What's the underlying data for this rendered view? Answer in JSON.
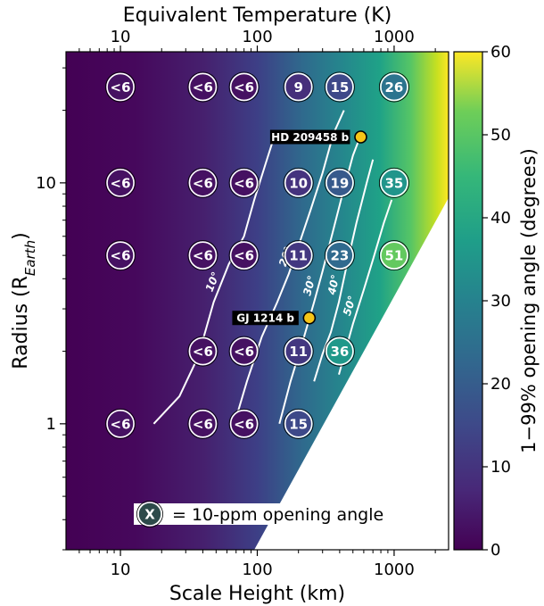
{
  "colors": {
    "background_high": "#fde725",
    "background_low": "#440154",
    "circle_text": "#ffffff",
    "planet_marker": "#f5c518",
    "contour": "#ffffff"
  },
  "chart_data": {
    "type": "heatmap",
    "title": "",
    "xlabel": "Scale Height (km)",
    "ylabel_main": "Radius (R",
    "ylabel_sub": "Earth",
    "ylabel_close": ")",
    "top_xlabel": "Equivalent Temperature (K)",
    "x_scale": "log",
    "y_scale": "log",
    "xlim": [
      4,
      2500
    ],
    "ylim": [
      0.3,
      35
    ],
    "x_ticks": [
      {
        "value": 10,
        "label": "10"
      },
      {
        "value": 100,
        "label": "100"
      },
      {
        "value": 1000,
        "label": "1000"
      }
    ],
    "y_ticks": [
      {
        "value": 1,
        "label": "1"
      },
      {
        "value": 10,
        "label": "10"
      }
    ],
    "top_ticks": [
      {
        "value": 10,
        "label": "10"
      },
      {
        "value": 100,
        "label": "100"
      },
      {
        "value": 1000,
        "label": "1000"
      }
    ],
    "colorbar": {
      "label": "1−99% opening angle (degrees)",
      "range": [
        0,
        60
      ],
      "ticks": [
        {
          "value": 0,
          "label": "0"
        },
        {
          "value": 10,
          "label": "10"
        },
        {
          "value": 20,
          "label": "20"
        },
        {
          "value": 30,
          "label": "30"
        },
        {
          "value": 40,
          "label": "40"
        },
        {
          "value": 50,
          "label": "50"
        },
        {
          "value": 60,
          "label": "60"
        }
      ]
    },
    "grid_circles": [
      {
        "x": 10,
        "y": 25,
        "label": "<6",
        "value": 3
      },
      {
        "x": 40,
        "y": 25,
        "label": "<6",
        "value": 3
      },
      {
        "x": 80,
        "y": 25,
        "label": "<6",
        "value": 3
      },
      {
        "x": 200,
        "y": 25,
        "label": "9",
        "value": 9
      },
      {
        "x": 400,
        "y": 25,
        "label": "15",
        "value": 15
      },
      {
        "x": 1000,
        "y": 25,
        "label": "26",
        "value": 26
      },
      {
        "x": 10,
        "y": 10,
        "label": "<6",
        "value": 3
      },
      {
        "x": 40,
        "y": 10,
        "label": "<6",
        "value": 3
      },
      {
        "x": 80,
        "y": 10,
        "label": "<6",
        "value": 3
      },
      {
        "x": 200,
        "y": 10,
        "label": "10",
        "value": 10
      },
      {
        "x": 400,
        "y": 10,
        "label": "19",
        "value": 19
      },
      {
        "x": 1000,
        "y": 10,
        "label": "35",
        "value": 35
      },
      {
        "x": 10,
        "y": 5,
        "label": "<6",
        "value": 3
      },
      {
        "x": 40,
        "y": 5,
        "label": "<6",
        "value": 3
      },
      {
        "x": 80,
        "y": 5,
        "label": "<6",
        "value": 3
      },
      {
        "x": 200,
        "y": 5,
        "label": "11",
        "value": 11
      },
      {
        "x": 400,
        "y": 5,
        "label": "23",
        "value": 23
      },
      {
        "x": 1000,
        "y": 5,
        "label": "51",
        "value": 51
      },
      {
        "x": 40,
        "y": 2,
        "label": "<6",
        "value": 3
      },
      {
        "x": 80,
        "y": 2,
        "label": "<6",
        "value": 3
      },
      {
        "x": 200,
        "y": 2,
        "label": "11",
        "value": 11
      },
      {
        "x": 400,
        "y": 2,
        "label": "36",
        "value": 36
      },
      {
        "x": 10,
        "y": 1,
        "label": "<6",
        "value": 3
      },
      {
        "x": 40,
        "y": 1,
        "label": "<6",
        "value": 3
      },
      {
        "x": 80,
        "y": 1,
        "label": "<6",
        "value": 3
      },
      {
        "x": 200,
        "y": 1,
        "label": "15",
        "value": 15
      }
    ],
    "contours": [
      {
        "label": "10°",
        "points": [
          [
            17.5,
            1.0
          ],
          [
            27,
            1.3
          ],
          [
            37,
            1.9
          ],
          [
            48,
            3.2
          ],
          [
            62,
            4.6
          ],
          [
            80,
            6.0
          ],
          [
            95,
            8.5
          ],
          [
            115,
            12
          ],
          [
            135,
            16
          ]
        ]
      },
      {
        "label": "20°",
        "points": [
          [
            68,
            1.0
          ],
          [
            84,
            1.5
          ],
          [
            108,
            2.3
          ],
          [
            140,
            3.2
          ],
          [
            170,
            4.2
          ],
          [
            205,
            5.7
          ],
          [
            245,
            7.7
          ],
          [
            300,
            11
          ],
          [
            360,
            16
          ],
          [
            430,
            20
          ]
        ]
      },
      {
        "label": "30°",
        "points": [
          [
            145,
            1.0
          ],
          [
            175,
            1.5
          ],
          [
            215,
            2.2
          ],
          [
            260,
            3.2
          ],
          [
            300,
            4.3
          ],
          [
            355,
            6.2
          ],
          [
            420,
            9.0
          ],
          [
            500,
            13
          ],
          [
            575,
            16
          ]
        ]
      },
      {
        "label": "40°",
        "points": [
          [
            260,
            1.5
          ],
          [
            300,
            1.95
          ],
          [
            345,
            2.4
          ],
          [
            395,
            3.2
          ],
          [
            445,
            4.4
          ],
          [
            530,
            6.8
          ],
          [
            630,
            10
          ],
          [
            700,
            12.5
          ]
        ]
      },
      {
        "label": "50°",
        "points": [
          [
            395,
            1.6
          ],
          [
            440,
            2.0
          ],
          [
            500,
            2.6
          ],
          [
            600,
            3.6
          ],
          [
            700,
            4.8
          ],
          [
            840,
            6.8
          ],
          [
            960,
            8.5
          ]
        ]
      }
    ],
    "planets": [
      {
        "name": "HD 209458 b",
        "x": 570,
        "y": 15.5
      },
      {
        "name": "GJ 1214 b",
        "x": 240,
        "y": 2.75
      }
    ],
    "legend": {
      "symbol": "X",
      "text": "= 10-ppm opening angle",
      "placement": "lower-left"
    }
  }
}
